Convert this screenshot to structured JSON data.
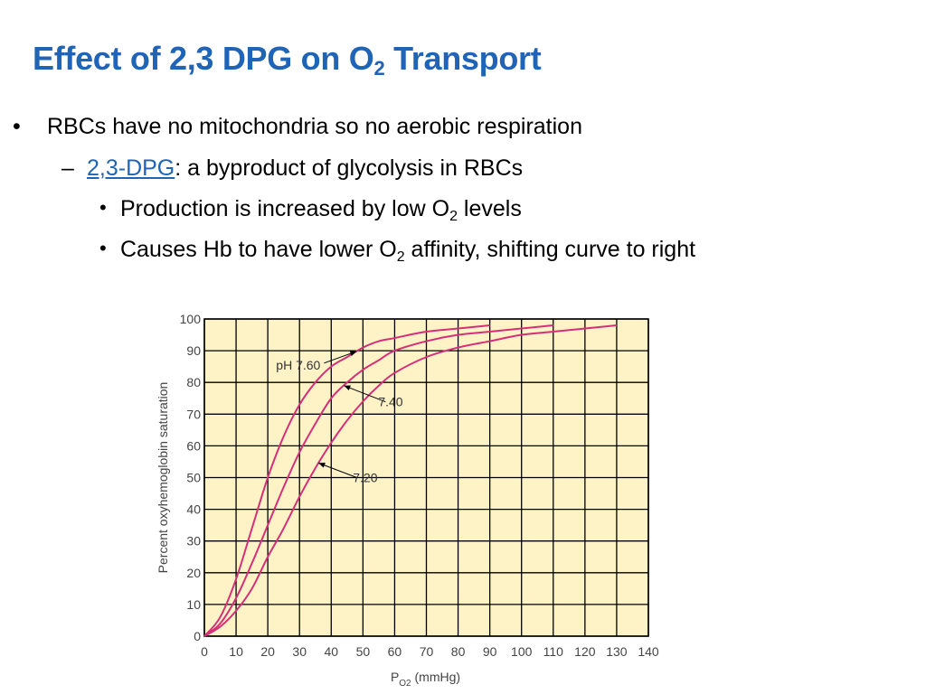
{
  "slide": {
    "title_main": "Effect of 2,3 DPG on O",
    "title_sub": "2",
    "title_end": " Transport",
    "bullets": [
      {
        "marker": "•",
        "text": "RBCs have no mitochondria so no aerobic respiration"
      },
      {
        "marker": "–",
        "link": "2,3-DPG",
        "text": ":  a byproduct of glycolysis in RBCs"
      },
      {
        "marker": "•",
        "pre": "Production is increased by low O",
        "sub": "2",
        "post": " levels"
      },
      {
        "marker": "•",
        "pre": "Causes Hb to have lower O",
        "sub": "2",
        "post": " affinity, shifting curve to right"
      }
    ]
  },
  "chart_data": {
    "type": "line",
    "title": "",
    "xlabel_main": "P",
    "xlabel_sub": "O2",
    "xlabel_unit": " (mmHg)",
    "ylabel": "Percent oxyhemoglobin saturation",
    "xlim": [
      0,
      140
    ],
    "ylim": [
      0,
      100
    ],
    "x_ticks": [
      0,
      10,
      20,
      30,
      40,
      50,
      60,
      70,
      80,
      90,
      100,
      110,
      120,
      130,
      140
    ],
    "y_ticks": [
      0,
      10,
      20,
      30,
      40,
      50,
      60,
      70,
      80,
      90,
      100
    ],
    "grid": true,
    "colors": {
      "curve": "#d62f7a",
      "grid": "#000000",
      "background": "#fef3c7",
      "axis_text": "#444444"
    },
    "series": [
      {
        "name": "pH 7.60",
        "x": [
          0,
          5,
          10,
          15,
          20,
          25,
          30,
          35,
          40,
          45,
          50,
          55,
          60,
          70,
          80,
          90
        ],
        "y": [
          0,
          6,
          18,
          34,
          50,
          63,
          73,
          80,
          85,
          88,
          91,
          93,
          94,
          96,
          97,
          98
        ]
      },
      {
        "name": "7.40",
        "x": [
          0,
          5,
          10,
          15,
          20,
          25,
          30,
          35,
          40,
          45,
          50,
          55,
          60,
          70,
          80,
          90,
          100,
          110
        ],
        "y": [
          0,
          4,
          12,
          23,
          35,
          47,
          58,
          67,
          75,
          80,
          84,
          87,
          90,
          93,
          95,
          96,
          97,
          98
        ]
      },
      {
        "name": "7.20",
        "x": [
          0,
          5,
          10,
          15,
          20,
          25,
          30,
          35,
          40,
          45,
          50,
          55,
          60,
          70,
          80,
          90,
          100,
          110,
          120,
          130
        ],
        "y": [
          0,
          3,
          8,
          15,
          25,
          34,
          44,
          53,
          61,
          68,
          74,
          79,
          83,
          88,
          91,
          93,
          95,
          96,
          97,
          98
        ]
      }
    ],
    "annotations": [
      {
        "text": "pH 7.60",
        "series": 0,
        "at_x": 48
      },
      {
        "text": "7.40",
        "series": 1,
        "at_x": 44
      },
      {
        "text": "7.20",
        "series": 2,
        "at_x": 36
      }
    ]
  }
}
